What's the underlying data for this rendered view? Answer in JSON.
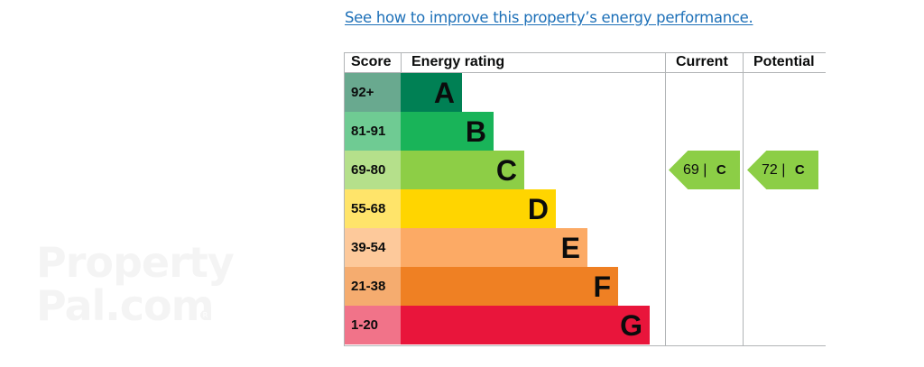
{
  "watermark": {
    "line1": "Property",
    "line2": "Pal.com",
    "mark": "R"
  },
  "link": {
    "text": "See how to improve this property’s energy performance."
  },
  "table": {
    "headers": {
      "score": "Score",
      "rating": "Energy rating",
      "current": "Current",
      "potential": "Potential"
    },
    "bands": [
      {
        "score": "92+",
        "letter": "A",
        "bar_color": "#008054",
        "score_color": "#69a98f"
      },
      {
        "score": "81-91",
        "letter": "B",
        "bar_color": "#19b459",
        "score_color": "#6fcb93"
      },
      {
        "score": "69-80",
        "letter": "C",
        "bar_color": "#8dce46",
        "score_color": "#b5e08b"
      },
      {
        "score": "55-68",
        "letter": "D",
        "bar_color": "#ffd500",
        "score_color": "#ffe46a"
      },
      {
        "score": "39-54",
        "letter": "E",
        "bar_color": "#fcaa65",
        "score_color": "#fdc99b"
      },
      {
        "score": "21-38",
        "letter": "F",
        "bar_color": "#ef8023",
        "score_color": "#f5ac6f"
      },
      {
        "score": "1-20",
        "letter": "G",
        "bar_color": "#e9153b",
        "score_color": "#f17389"
      }
    ],
    "current": {
      "value": "69",
      "separator": "|",
      "letter": "C",
      "color": "#8cce46"
    },
    "potential": {
      "value": "72",
      "separator": "|",
      "letter": "C",
      "color": "#8cce46"
    }
  }
}
